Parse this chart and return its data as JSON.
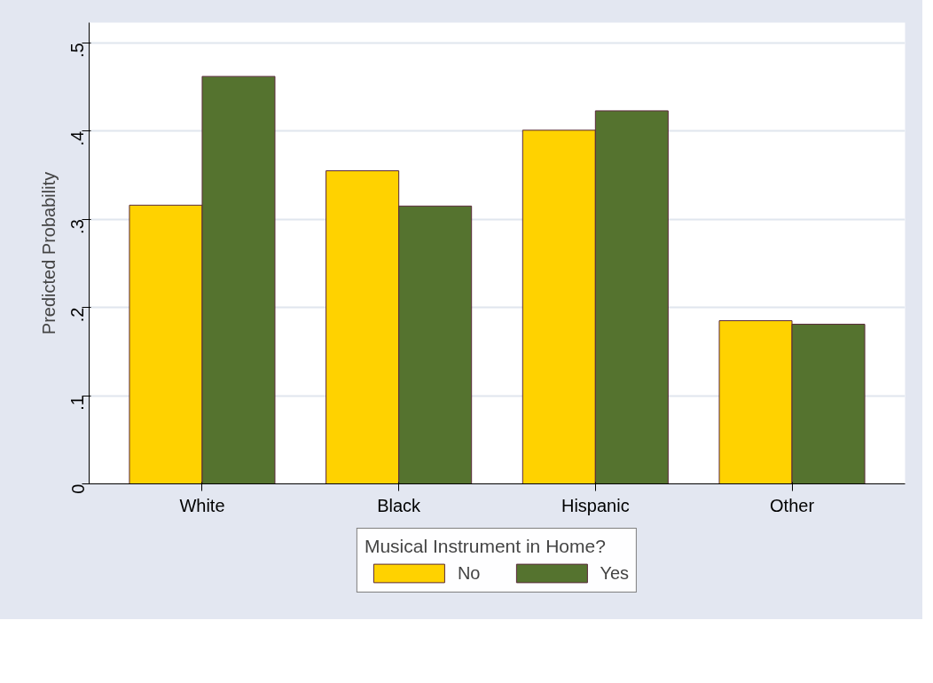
{
  "chart_data": {
    "type": "bar",
    "ylabel": "Predicted Probability",
    "legend_title": "Musical Instrument in Home?",
    "categories": [
      "White",
      "Black",
      "Hispanic",
      "Other"
    ],
    "series": [
      {
        "name": "No",
        "color": "#ffd200",
        "values": [
          0.316,
          0.355,
          0.401,
          0.185
        ]
      },
      {
        "name": "Yes",
        "color": "#55732f",
        "values": [
          0.462,
          0.315,
          0.423,
          0.181
        ]
      }
    ],
    "ylim": [
      0,
      0.523
    ],
    "yticks": [
      {
        "value": 0,
        "label": "0"
      },
      {
        "value": 0.1,
        "label": ".1"
      },
      {
        "value": 0.2,
        "label": ".2"
      },
      {
        "value": 0.3,
        "label": ".3"
      },
      {
        "value": 0.4,
        "label": ".4"
      },
      {
        "value": 0.5,
        "label": ".5"
      }
    ],
    "grid": "y",
    "legend": "bottom"
  }
}
